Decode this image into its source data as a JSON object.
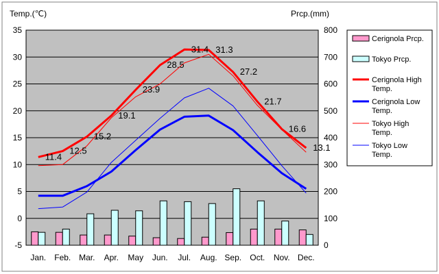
{
  "chart_data": {
    "type": "bar+line",
    "categories": [
      "Jan.",
      "Feb.",
      "Mar.",
      "Apr.",
      "May",
      "Jun.",
      "Jul.",
      "Aug.",
      "Sep.",
      "Oct.",
      "Nov.",
      "Dec."
    ],
    "left_axis": {
      "title": "Temp.(℃)",
      "range": [
        -5,
        35
      ],
      "ticks": [
        -5,
        0,
        5,
        10,
        15,
        20,
        25,
        30,
        35
      ]
    },
    "right_axis": {
      "title": "Prcp.(mm)",
      "range": [
        0,
        800
      ],
      "ticks": [
        0,
        100,
        200,
        300,
        400,
        500,
        600,
        700,
        800
      ]
    },
    "bars": [
      {
        "name": "Cerignola Prcp.",
        "color": "#ff99cc",
        "values": [
          50,
          48,
          38,
          38,
          34,
          28,
          25,
          30,
          47,
          60,
          60,
          57
        ]
      },
      {
        "name": "Tokyo Prcp.",
        "color": "#ccffff",
        "values": [
          48,
          60,
          117,
          130,
          128,
          165,
          162,
          155,
          210,
          165,
          90,
          40
        ]
      }
    ],
    "lines": [
      {
        "name": "Cerignola High Temp.",
        "color": "#ff0000",
        "width": 3,
        "values": [
          11.4,
          12.5,
          15.2,
          19.1,
          23.9,
          28.5,
          31.4,
          31.3,
          27.2,
          21.7,
          16.6,
          13.1
        ],
        "labels": [
          "11.4",
          "12.5",
          "15.2",
          "19.1",
          "23.9",
          "28.5",
          "31.4",
          "31.3",
          "27.2",
          "21.7",
          "16.6",
          "13.1"
        ]
      },
      {
        "name": "Cerignola Low Temp.",
        "color": "#0000ff",
        "width": 3,
        "values": [
          4.2,
          4.2,
          6.0,
          8.7,
          12.7,
          16.5,
          18.9,
          19.1,
          16.4,
          12.3,
          8.4,
          5.5
        ]
      },
      {
        "name": "Tokyo High Temp.",
        "color": "#ff0000",
        "width": 1,
        "values": [
          9.8,
          10.0,
          13.5,
          18.7,
          22.6,
          25.0,
          28.9,
          30.5,
          26.5,
          21.0,
          16.5,
          12.3
        ]
      },
      {
        "name": "Tokyo Low Temp.",
        "color": "#0000ff",
        "width": 1,
        "values": [
          1.8,
          2.1,
          4.9,
          10.4,
          14.5,
          18.6,
          22.4,
          24.2,
          20.9,
          15.4,
          9.8,
          4.7
        ]
      }
    ],
    "legend": [
      {
        "label_lines": [
          "Cerignola Prcp."
        ],
        "kind": "box",
        "color": "#ff99cc"
      },
      {
        "label_lines": [
          "Tokyo Prcp."
        ],
        "kind": "box",
        "color": "#ccffff"
      },
      {
        "label_lines": [
          "Cerignola High",
          "Temp."
        ],
        "kind": "line",
        "color": "#ff0000",
        "width": 3
      },
      {
        "label_lines": [
          "Cerignola Low",
          "Temp."
        ],
        "kind": "line",
        "color": "#0000ff",
        "width": 3
      },
      {
        "label_lines": [
          "Tokyo High",
          "Temp."
        ],
        "kind": "line",
        "color": "#ff0000",
        "width": 1
      },
      {
        "label_lines": [
          "Tokyo Low",
          "Temp."
        ],
        "kind": "line",
        "color": "#0000ff",
        "width": 1
      }
    ],
    "legend_position": "right",
    "plot_background": "#c0c0c0",
    "grid": "horizontal"
  }
}
